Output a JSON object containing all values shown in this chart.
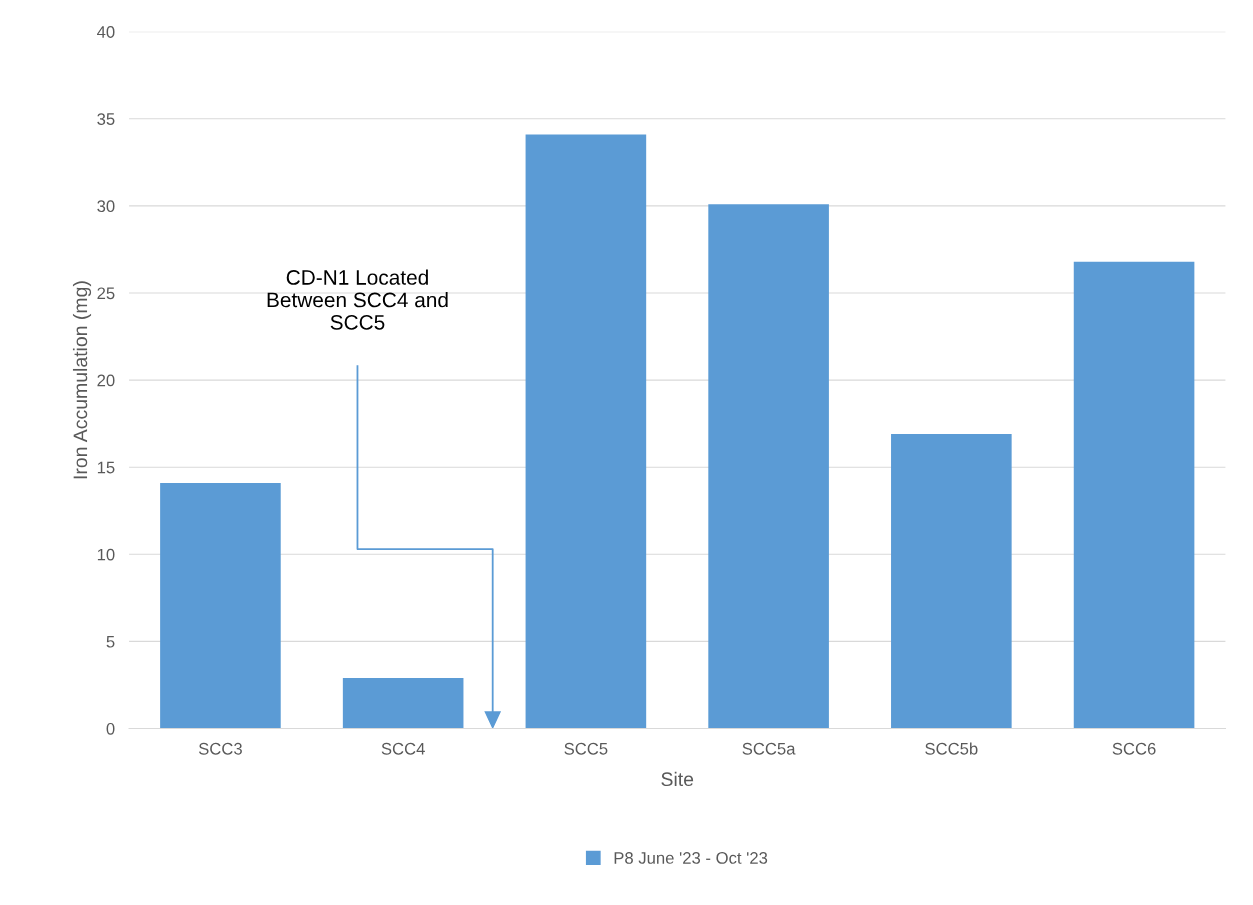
{
  "chart_data": {
    "type": "bar",
    "xlabel": "Site",
    "ylabel": "Iron Accumulation (mg)",
    "categories": [
      "SCC3",
      "SCC4",
      "SCC5",
      "SCC5a",
      "SCC5b",
      "SCC6"
    ],
    "series": [
      {
        "name": "P8 June '23 - Oct '23",
        "color": "#5b9bd5",
        "values": [
          14.1,
          2.9,
          34.1,
          30.1,
          16.9,
          26.8
        ]
      }
    ],
    "ylim": [
      0,
      40
    ],
    "yticks": [
      0,
      5,
      10,
      15,
      20,
      25,
      30,
      35,
      40
    ],
    "grid": "y",
    "legend": "bottom",
    "annotations": [
      "CD-N1 Located\nBetween SCC4 and\nSCC5"
    ]
  }
}
